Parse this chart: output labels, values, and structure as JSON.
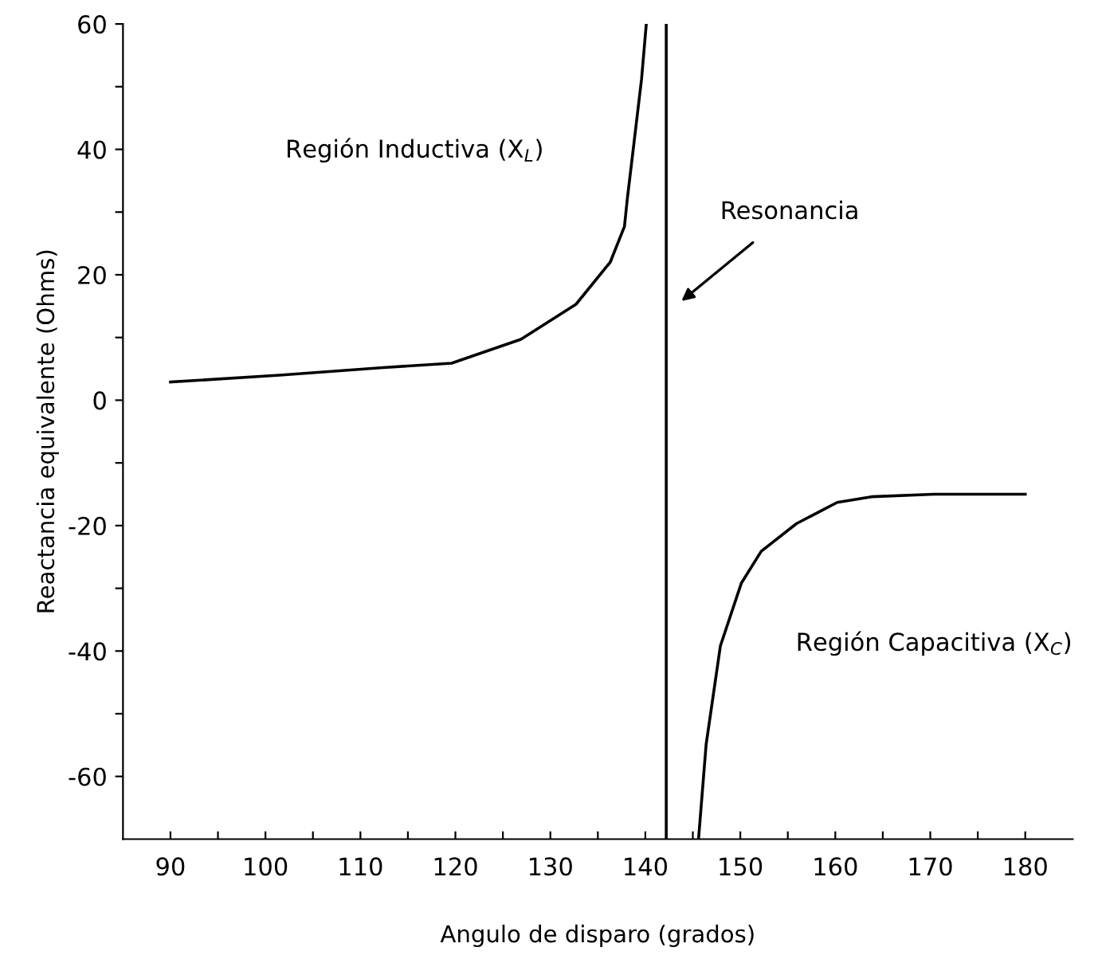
{
  "chart_data": {
    "type": "line",
    "xlabel": "Angulo de disparo (grados)",
    "ylabel": "Reactancia equivalente (Ohms)",
    "series": [
      {
        "color": "#000000",
        "x": [
          90,
          101.5,
          112.4,
          119.6,
          126.9,
          132.7,
          136.3,
          137.8,
          138.1,
          138.8,
          139.6,
          140.1
        ],
        "values": [
          2.9,
          4.0,
          5.2,
          5.9,
          9.7,
          15.3,
          22,
          27.7,
          32.1,
          41,
          51.2,
          60
        ]
      },
      {
        "color": "#000000",
        "x": [
          145.6,
          146.4,
          147.9,
          150.1,
          152.2,
          155.9,
          160.2,
          163.8,
          170.4,
          180
        ],
        "values": [
          -70,
          -54.9,
          -39.2,
          -29.2,
          -24.1,
          -19.7,
          -16.3,
          -15.4,
          -15.0,
          -15.0
        ]
      }
    ],
    "ref_lines": [
      {
        "axis": "x",
        "value": 142.2,
        "color": "#000000"
      }
    ],
    "annotations": [
      "Región Inductiva (X$_{L}$)",
      "Resonancia",
      "Región Capacitiva (X$_{C}$)"
    ],
    "xlim": [
      85,
      185
    ],
    "ylim": [
      -70,
      60
    ],
    "xticks": [
      90,
      {
        "value": 95,
        "label": null
      },
      100,
      {
        "value": 105,
        "label": null
      },
      110,
      {
        "value": 115,
        "label": null
      },
      120,
      {
        "value": 125,
        "label": null
      },
      130,
      {
        "value": 135,
        "label": null
      },
      140,
      {
        "value": 145,
        "label": null
      },
      150,
      {
        "value": 155,
        "label": null
      },
      160,
      {
        "value": 165,
        "label": null
      },
      170,
      {
        "value": 175,
        "label": null
      },
      180
    ],
    "yticks": [
      -60,
      {
        "value": -50,
        "label": null
      },
      -40,
      {
        "value": -30,
        "label": null
      },
      -20,
      {
        "value": -10,
        "label": null
      },
      0,
      {
        "value": 10,
        "label": null
      },
      20,
      {
        "value": 30,
        "label": null
      },
      40,
      {
        "value": 50,
        "label": null
      },
      60
    ],
    "grid": false,
    "legend": false
  }
}
